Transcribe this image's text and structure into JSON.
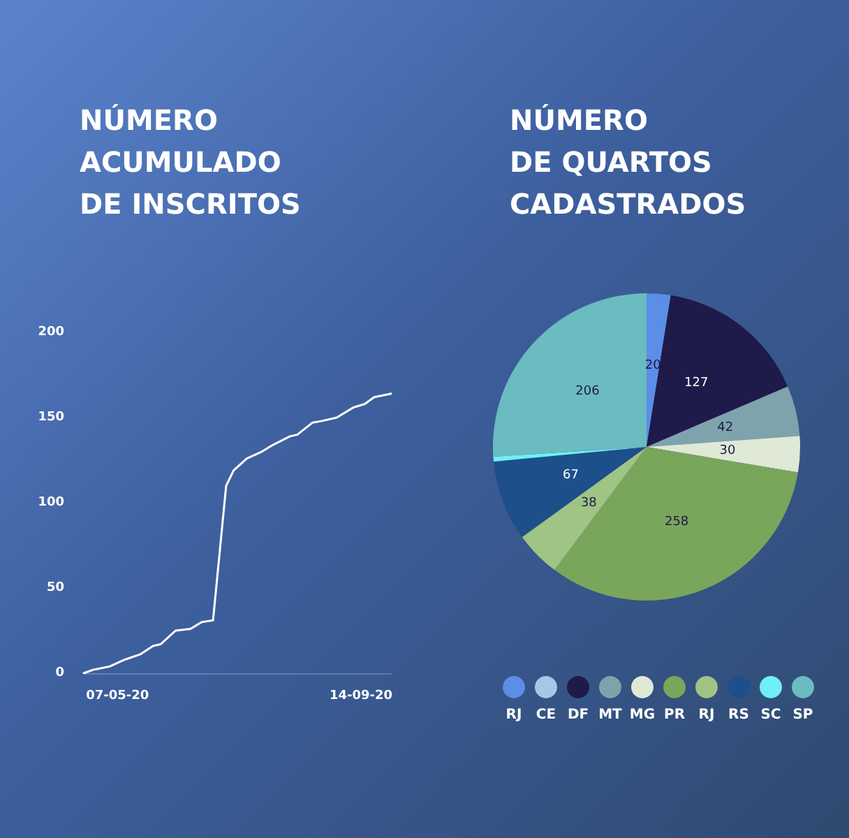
{
  "chart_data": [
    {
      "type": "line",
      "title": "NÚMERO\nACUMULADO\nDE INSCRITOS",
      "x": [
        "2020-04-19",
        "2020-04-24",
        "2020-05-03",
        "2020-05-11",
        "2020-05-19",
        "2020-05-26",
        "2020-05-30",
        "2020-06-07",
        "2020-06-15",
        "2020-06-21",
        "2020-06-27",
        "2020-07-04",
        "2020-07-08",
        "2020-07-15",
        "2020-07-23",
        "2020-07-29",
        "2020-08-07",
        "2020-08-11",
        "2020-08-19",
        "2020-08-24",
        "2020-09-01",
        "2020-09-10",
        "2020-09-16",
        "2020-09-21",
        "2020-09-30"
      ],
      "series": [
        {
          "color": "#ffffff",
          "values": [
            0,
            2,
            4,
            8,
            11,
            16,
            17,
            25,
            26,
            30,
            31,
            110,
            119,
            126,
            130,
            134,
            139,
            140,
            147,
            148,
            150,
            156,
            158,
            162,
            164
          ]
        }
      ],
      "xlim": [
        "2020-04-19",
        "2020-09-30"
      ],
      "xticks": [
        {
          "value": "2020-05-07",
          "label": "07-05-20"
        },
        {
          "value": "2020-09-14",
          "label": "14-09-20"
        }
      ],
      "ylim": [
        0,
        200
      ],
      "yticks": [
        0,
        50,
        100,
        150,
        200
      ],
      "grid": false,
      "legend": false,
      "marker": "none",
      "line_style": "solid"
    },
    {
      "type": "pie",
      "title": "NÚMERO\nDE QUARTOS\nCADASTRADOS",
      "categories": [
        "RJ",
        "CE",
        "DF",
        "MT",
        "MG",
        "PR",
        "RJ",
        "RS",
        "SC",
        "SP"
      ],
      "values": [
        20,
        0,
        127,
        42,
        30,
        258,
        38,
        67,
        4,
        206
      ],
      "value_labels": [
        "20",
        null,
        "127",
        "42",
        "30",
        "258",
        "38",
        "67",
        null,
        "206"
      ],
      "colors": [
        "#5b8ee6",
        "#a9c6e6",
        "#1e1a4a",
        "#7fa3ad",
        "#dfe9d6",
        "#7aa65b",
        "#9fc483",
        "#1d4f8a",
        "#6ff0f5",
        "#6abcc0"
      ],
      "legend": "bottom"
    }
  ]
}
